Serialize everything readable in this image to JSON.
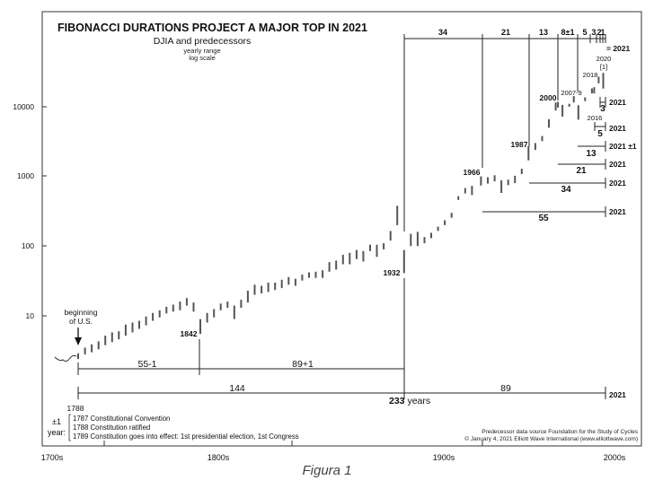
{
  "figure_caption": "Figura 1",
  "chart_data": {
    "type": "range-bar",
    "title": "FIBONACCI DURATIONS PROJECT A MAJOR TOP IN 2021",
    "subtitle": "DJIA and predecessors",
    "subtitle2": "yearly range",
    "subtitle3": "log scale",
    "yscale": "log",
    "ylim": [
      1.5,
      40000
    ],
    "xlim": [
      1700,
      2025
    ],
    "grid": false,
    "y_ticks": [
      10,
      100,
      1000,
      10000
    ],
    "y_tick_labels": [
      "10",
      "100",
      "1000",
      "10000"
    ],
    "x_tick_labels": [
      {
        "label": "1700s",
        "x": 1700
      },
      {
        "label": "1800s",
        "x": 1800
      },
      {
        "label": "1900s",
        "x": 1900
      },
      {
        "label": "2000s",
        "x": 2000
      }
    ],
    "series": [
      {
        "values_desc": "yearly high/low ranges",
        "years": [
          1788,
          1791,
          1794,
          1797,
          1800,
          1803,
          1806,
          1809,
          1812,
          1815,
          1818,
          1821,
          1824,
          1827,
          1830,
          1833,
          1836,
          1839,
          1842,
          1845,
          1848,
          1851,
          1854,
          1857,
          1860,
          1863,
          1866,
          1869,
          1872,
          1875,
          1878,
          1881,
          1884,
          1887,
          1890,
          1893,
          1896,
          1899,
          1902,
          1905,
          1908,
          1911,
          1914,
          1917,
          1920,
          1923,
          1926,
          1929,
          1932,
          1935,
          1938,
          1941,
          1944,
          1947,
          1950,
          1953,
          1956,
          1959,
          1962,
          1966,
          1969,
          1972,
          1975,
          1978,
          1981,
          1984,
          1987,
          1990,
          1993,
          1996,
          1999,
          2000,
          2002,
          2005,
          2007,
          2009,
          2012,
          2015,
          2016,
          2018,
          2020
        ],
        "lows": [
          2.4,
          2.8,
          3.0,
          3.3,
          3.8,
          4.2,
          4.6,
          5.2,
          5.8,
          6.5,
          7.3,
          8.5,
          9.5,
          10.8,
          11.5,
          12.0,
          14.0,
          11.5,
          5.5,
          8.0,
          9.5,
          12.0,
          13.0,
          9.0,
          13.0,
          15.5,
          20.0,
          21.0,
          22.0,
          23.5,
          25.0,
          28.0,
          27.0,
          32.0,
          35.0,
          35.0,
          35.0,
          43.0,
          46.0,
          55.0,
          55.0,
          65.0,
          60.0,
          85.0,
          70.0,
          90.0,
          120.0,
          200.0,
          41.0,
          100.0,
          100.0,
          110.0,
          130.0,
          165.0,
          200.0,
          255.0,
          460.0,
          570.0,
          540.0,
          740.0,
          790.0,
          850.0,
          580.0,
          750.0,
          800.0,
          1080.0,
          1700.0,
          2400.0,
          3200.0,
          5000.0,
          8800.0,
          9700.0,
          7200.0,
          10000.0,
          11500.0,
          6500.0,
          12000.0,
          15500.0,
          15500.0,
          21700.0,
          18200.0
        ],
        "highs": [
          2.9,
          3.5,
          3.9,
          4.3,
          5.2,
          5.8,
          6.0,
          7.5,
          8.0,
          8.5,
          9.8,
          11.0,
          12.0,
          13.5,
          14.5,
          16.0,
          18.0,
          15.5,
          9.0,
          11.0,
          12.5,
          15.0,
          16.0,
          14.0,
          17.0,
          23.0,
          28.0,
          27.0,
          30.0,
          30.0,
          33.0,
          36.0,
          34.0,
          39.0,
          42.0,
          43.0,
          45.0,
          59.0,
          62.0,
          75.0,
          80.0,
          88.0,
          85.0,
          105.0,
          105.0,
          110.0,
          165.0,
          380.0,
          88.0,
          150.0,
          160.0,
          135.0,
          155.0,
          190.0,
          235.0,
          300.0,
          520.0,
          680.0,
          730.0,
          1000.0,
          970.0,
          1040.0,
          880.0,
          900.0,
          1020.0,
          1290.0,
          2720.0,
          3000.0,
          3800.0,
          6600.0,
          11500.0,
          11750.0,
          10600.0,
          11000.0,
          14200.0,
          10500.0,
          13600.0,
          18300.0,
          19000.0,
          26900.0,
          30600.0
        ]
      }
    ],
    "annotations": {
      "beginning": "beginning\nof U.S.",
      "year_1788": "1788",
      "year_1842": "1842",
      "year_1932": "1932",
      "year_1966": "1966",
      "year_1987": "1987",
      "year_2000": "2000",
      "year_2007_9": "2007-9",
      "year_2016": "2016",
      "year_2018": "2018",
      "year_2020": "2020",
      "year_2020_note": "[1]"
    },
    "top_spans": [
      "34",
      "21",
      "13",
      "8±1",
      "5",
      "3",
      "2",
      "1"
    ],
    "top_end": "= 2021",
    "right_spans": [
      {
        "label": "3",
        "end": "2021"
      },
      {
        "label": "5",
        "end": "2021"
      },
      {
        "label": "13",
        "end": "2021 ±1"
      },
      {
        "label": "21",
        "end": "2021"
      },
      {
        "label": "34",
        "end": "2021"
      },
      {
        "label": "55",
        "end": "2021"
      }
    ],
    "bottom_spans": {
      "span_55": "55-1",
      "span_89a": "89+1",
      "span_144": "144",
      "span_233": "233",
      "span_233_unit": " years",
      "span_89b": "89",
      "end": "2021"
    },
    "footnote_label": "±1",
    "footnote_label2": "year:",
    "footnotes": [
      "1787 Constitutional Convention",
      "1788 Constitution ratified",
      "1789 Constitution goes into effect: 1st presidential election, 1st Congress"
    ],
    "source_line1": "Predecessor data source Foundation for the Study of Cycles",
    "source_line2": "© January 4, 2021 Elliott Wave International (www.elliottwave.com)"
  }
}
